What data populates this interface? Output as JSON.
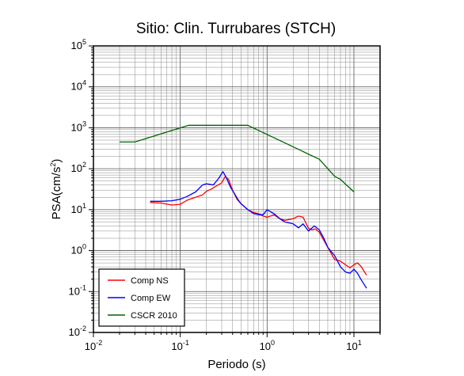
{
  "chart_data": {
    "type": "line",
    "title": "Sitio: Clin. Turrubares (STCH)",
    "xlabel": "Periodo (s)",
    "ylabel_base": "PSA(cm/s",
    "ylabel_sup": "2",
    "ylabel_end": ")",
    "x_scale": "log",
    "y_scale": "log",
    "xlim": [
      0.01,
      20
    ],
    "ylim": [
      0.01,
      100000
    ],
    "grid": true,
    "legend_placement": "bottom-left",
    "x_ticks": [
      {
        "value": 0.01,
        "base": "10",
        "exp": "-2"
      },
      {
        "value": 0.1,
        "base": "10",
        "exp": "-1"
      },
      {
        "value": 1,
        "base": "10",
        "exp": "0"
      },
      {
        "value": 10,
        "base": "10",
        "exp": "1"
      }
    ],
    "y_ticks": [
      {
        "value": 0.01,
        "base": "10",
        "exp": "-2"
      },
      {
        "value": 0.1,
        "base": "10",
        "exp": "-1"
      },
      {
        "value": 1,
        "base": "10",
        "exp": "0"
      },
      {
        "value": 10,
        "base": "10",
        "exp": "1"
      },
      {
        "value": 100,
        "base": "10",
        "exp": "2"
      },
      {
        "value": 1000,
        "base": "10",
        "exp": "3"
      },
      {
        "value": 10000,
        "base": "10",
        "exp": "4"
      },
      {
        "value": 100000,
        "base": "10",
        "exp": "5"
      }
    ],
    "series": [
      {
        "name": "Comp NS",
        "color": "#ff0000",
        "points": [
          [
            0.045,
            15
          ],
          [
            0.06,
            14.5
          ],
          [
            0.08,
            13
          ],
          [
            0.1,
            13.5
          ],
          [
            0.12,
            17
          ],
          [
            0.15,
            20
          ],
          [
            0.18,
            23
          ],
          [
            0.2,
            28
          ],
          [
            0.23,
            32
          ],
          [
            0.26,
            38
          ],
          [
            0.3,
            45
          ],
          [
            0.33,
            65
          ],
          [
            0.36,
            55
          ],
          [
            0.4,
            30
          ],
          [
            0.45,
            18
          ],
          [
            0.5,
            14
          ],
          [
            0.6,
            10
          ],
          [
            0.7,
            8.5
          ],
          [
            0.8,
            8
          ],
          [
            0.9,
            7
          ],
          [
            1.0,
            6.5
          ],
          [
            1.2,
            7.5
          ],
          [
            1.4,
            6
          ],
          [
            1.6,
            5.5
          ],
          [
            2.0,
            6
          ],
          [
            2.3,
            7
          ],
          [
            2.6,
            6.5
          ],
          [
            3.0,
            3.5
          ],
          [
            3.3,
            3.2
          ],
          [
            3.6,
            3.4
          ],
          [
            4.0,
            2.8
          ],
          [
            5.0,
            1.2
          ],
          [
            6.0,
            0.6
          ],
          [
            7.0,
            0.55
          ],
          [
            8.0,
            0.45
          ],
          [
            9.0,
            0.38
          ],
          [
            10,
            0.45
          ],
          [
            11,
            0.5
          ],
          [
            12,
            0.42
          ],
          [
            14,
            0.25
          ]
        ]
      },
      {
        "name": "Comp EW",
        "color": "#0000ff",
        "points": [
          [
            0.045,
            16
          ],
          [
            0.06,
            16
          ],
          [
            0.08,
            16.5
          ],
          [
            0.1,
            18
          ],
          [
            0.12,
            21
          ],
          [
            0.15,
            27
          ],
          [
            0.18,
            40
          ],
          [
            0.2,
            43
          ],
          [
            0.24,
            40
          ],
          [
            0.28,
            60
          ],
          [
            0.31,
            85
          ],
          [
            0.34,
            60
          ],
          [
            0.38,
            35
          ],
          [
            0.42,
            25
          ],
          [
            0.46,
            18
          ],
          [
            0.5,
            14
          ],
          [
            0.6,
            10
          ],
          [
            0.7,
            8
          ],
          [
            0.8,
            7.5
          ],
          [
            0.9,
            7.5
          ],
          [
            1.0,
            10
          ],
          [
            1.2,
            8
          ],
          [
            1.4,
            6
          ],
          [
            1.6,
            5
          ],
          [
            2.0,
            4.5
          ],
          [
            2.3,
            3.6
          ],
          [
            2.6,
            4.5
          ],
          [
            3.0,
            3
          ],
          [
            3.5,
            4
          ],
          [
            4.0,
            3.2
          ],
          [
            4.5,
            2
          ],
          [
            5.0,
            1.2
          ],
          [
            6.0,
            0.75
          ],
          [
            7.0,
            0.4
          ],
          [
            8.0,
            0.3
          ],
          [
            9.0,
            0.28
          ],
          [
            10,
            0.35
          ],
          [
            11,
            0.28
          ],
          [
            12,
            0.2
          ],
          [
            14,
            0.12
          ]
        ]
      },
      {
        "name": "CSCR 2010",
        "color": "#006400",
        "points": [
          [
            0.02,
            450
          ],
          [
            0.03,
            450
          ],
          [
            0.125,
            1150
          ],
          [
            0.6,
            1150
          ],
          [
            4.0,
            170
          ],
          [
            6.0,
            65
          ],
          [
            7.0,
            55
          ],
          [
            10,
            27
          ]
        ]
      }
    ]
  }
}
